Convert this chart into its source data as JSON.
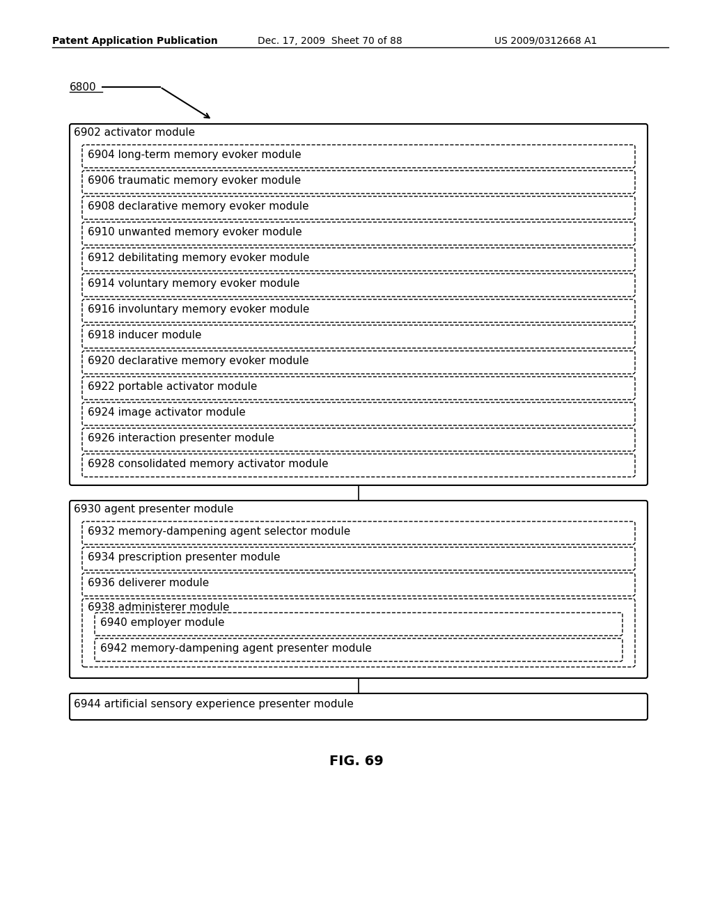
{
  "header_left": "Patent Application Publication",
  "header_mid": "Dec. 17, 2009  Sheet 70 of 88",
  "header_right": "US 2009/0312668 A1",
  "figure_label": "FIG. 69",
  "ref_label": "6800",
  "bg_color": "#ffffff",
  "text_color": "#000000",
  "box1": {
    "label": "6902 activator module",
    "children": [
      "6904 long-term memory evoker module",
      "6906 traumatic memory evoker module",
      "6908 declarative memory evoker module",
      "6910 unwanted memory evoker module",
      "6912 debilitating memory evoker module",
      "6914 voluntary memory evoker module",
      "6916 involuntary memory evoker module",
      "6918 inducer module",
      "6920 declarative memory evoker module",
      "6922 portable activator module",
      "6924 image activator module",
      "6926 interaction presenter module",
      "6928 consolidated memory activator module"
    ]
  },
  "box2": {
    "label": "6930 agent presenter module",
    "children": [
      "6932 memory-dampening agent selector module",
      "6934 prescription presenter module",
      "6936 deliverer module"
    ],
    "nested_parent": "6938 administerer module",
    "nested_children": [
      "6940 employer module",
      "6942 memory-dampening agent presenter module"
    ]
  },
  "box3": {
    "label": "6944 artificial sensory experience presenter module"
  }
}
